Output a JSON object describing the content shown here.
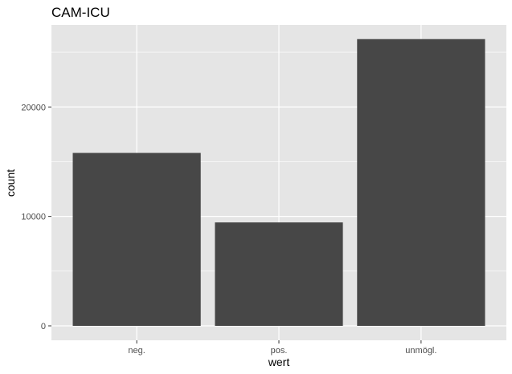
{
  "chart_data": {
    "type": "bar",
    "title": "CAM-ICU",
    "xlabel": "wert",
    "ylabel": "count",
    "categories": [
      "neg.",
      "pos.",
      "unmögl."
    ],
    "values": [
      15800,
      9450,
      26200
    ],
    "ylim": [
      0,
      27500
    ],
    "yticks": [
      0,
      10000,
      20000
    ],
    "grid": true,
    "legend": "none"
  },
  "colors": {
    "panel_background": "#e5e5e5",
    "grid_line": "#ffffff",
    "bar_fill": "#474747",
    "tick_text": "#4d4d4d"
  }
}
